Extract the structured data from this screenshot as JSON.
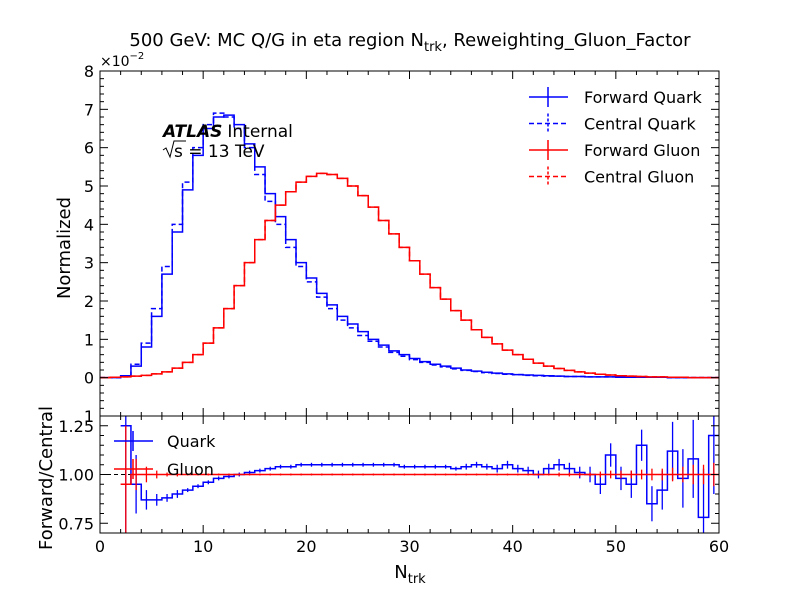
{
  "title_main": "500 GeV: MC Q/G in eta region N",
  "title_sub": "trk",
  "title_tail": ", Reweighting_Gluon_Factor",
  "atlas_label": "ATLAS",
  "atlas_internal": "Internal",
  "energy_root": "s",
  "energy_label": " = 13 TeV",
  "offset_base": "×10",
  "offset_exp": "−2",
  "chart_data": [
    {
      "type": "line",
      "ylabel": "Normalized",
      "xlim": [
        0,
        60
      ],
      "ylim": [
        -1,
        8
      ],
      "yscale_note": "values ×10^-2",
      "grid": false,
      "legend_position": "top-right",
      "x_ticks": [
        "0",
        "10",
        "20",
        "30",
        "40",
        "50",
        "60"
      ],
      "y_ticks": [
        "0",
        "1",
        "2",
        "3",
        "4",
        "5",
        "6",
        "7",
        "8"
      ],
      "bin_edges": [
        0,
        1,
        2,
        3,
        4,
        5,
        6,
        7,
        8,
        9,
        10,
        11,
        12,
        13,
        14,
        15,
        16,
        17,
        18,
        19,
        20,
        21,
        22,
        23,
        24,
        25,
        26,
        27,
        28,
        29,
        30,
        31,
        32,
        33,
        34,
        35,
        36,
        37,
        38,
        39,
        40,
        41,
        42,
        43,
        44,
        45,
        46,
        47,
        48,
        49,
        50,
        51,
        52,
        53,
        54,
        55,
        56,
        57,
        58,
        59,
        60
      ],
      "series": [
        {
          "name": "Forward Quark",
          "color": "#0000ff",
          "dash": "solid",
          "values": [
            0,
            0,
            0.05,
            0.3,
            0.8,
            1.6,
            2.7,
            3.8,
            4.9,
            5.8,
            6.5,
            6.8,
            6.85,
            6.6,
            6.1,
            5.5,
            4.8,
            4.2,
            3.6,
            3.0,
            2.6,
            2.2,
            1.9,
            1.6,
            1.4,
            1.2,
            1.0,
            0.85,
            0.7,
            0.6,
            0.5,
            0.42,
            0.35,
            0.3,
            0.25,
            0.2,
            0.17,
            0.14,
            0.12,
            0.1,
            0.08,
            0.07,
            0.06,
            0.05,
            0.04,
            0.03,
            0.03,
            0.02,
            0.02,
            0.02,
            0.01,
            0.01,
            0.01,
            0.01,
            0.01,
            0,
            0,
            0,
            0,
            0
          ]
        },
        {
          "name": "Central Quark",
          "color": "#0000ff",
          "dash": "dashed",
          "values": [
            0,
            0,
            0.05,
            0.35,
            0.9,
            1.8,
            2.9,
            4.0,
            5.1,
            6.0,
            6.6,
            6.9,
            6.8,
            6.5,
            6.0,
            5.3,
            4.6,
            4.0,
            3.4,
            2.9,
            2.5,
            2.1,
            1.8,
            1.5,
            1.3,
            1.1,
            0.95,
            0.8,
            0.66,
            0.56,
            0.47,
            0.4,
            0.33,
            0.28,
            0.23,
            0.19,
            0.16,
            0.13,
            0.11,
            0.09,
            0.08,
            0.06,
            0.05,
            0.04,
            0.04,
            0.03,
            0.03,
            0.02,
            0.02,
            0.02,
            0.01,
            0.01,
            0.01,
            0.01,
            0.01,
            0,
            0,
            0,
            0,
            0
          ]
        },
        {
          "name": "Forward Gluon",
          "color": "#ff0000",
          "dash": "solid",
          "values": [
            0,
            0.01,
            0.02,
            0.04,
            0.06,
            0.1,
            0.15,
            0.25,
            0.4,
            0.6,
            0.9,
            1.3,
            1.8,
            2.4,
            3.0,
            3.6,
            4.1,
            4.5,
            4.85,
            5.1,
            5.25,
            5.33,
            5.3,
            5.2,
            5.0,
            4.75,
            4.45,
            4.1,
            3.75,
            3.4,
            3.05,
            2.7,
            2.35,
            2.05,
            1.75,
            1.5,
            1.25,
            1.05,
            0.88,
            0.72,
            0.6,
            0.48,
            0.38,
            0.3,
            0.24,
            0.19,
            0.15,
            0.12,
            0.09,
            0.07,
            0.05,
            0.04,
            0.03,
            0.02,
            0.02,
            0.01,
            0.01,
            0,
            0,
            0
          ]
        },
        {
          "name": "Central Gluon",
          "color": "#ff0000",
          "dash": "dashed",
          "values": [
            0,
            0.01,
            0.02,
            0.04,
            0.06,
            0.1,
            0.15,
            0.25,
            0.4,
            0.6,
            0.9,
            1.3,
            1.8,
            2.4,
            3.0,
            3.6,
            4.1,
            4.5,
            4.85,
            5.1,
            5.25,
            5.33,
            5.3,
            5.2,
            5.0,
            4.75,
            4.45,
            4.1,
            3.75,
            3.4,
            3.05,
            2.7,
            2.35,
            2.05,
            1.75,
            1.5,
            1.25,
            1.05,
            0.88,
            0.72,
            0.6,
            0.48,
            0.38,
            0.3,
            0.24,
            0.19,
            0.15,
            0.12,
            0.09,
            0.07,
            0.05,
            0.04,
            0.03,
            0.02,
            0.02,
            0.01,
            0.01,
            0,
            0,
            0
          ]
        }
      ]
    },
    {
      "type": "line",
      "xlabel_main": "N",
      "xlabel_sub": "trk",
      "ylabel": "Forward/Central",
      "xlim": [
        0,
        60
      ],
      "ylim": [
        0.7,
        1.3
      ],
      "reference_line": 1.0,
      "grid": false,
      "legend_position": "top-left",
      "x_ticks": [
        "0",
        "10",
        "20",
        "30",
        "40",
        "50",
        "60"
      ],
      "y_ticks": [
        "0.75",
        "1.00",
        "1.25"
      ],
      "bin_edges": [
        2,
        3,
        4,
        5,
        6,
        7,
        8,
        9,
        10,
        11,
        12,
        13,
        14,
        15,
        16,
        17,
        18,
        19,
        20,
        21,
        22,
        23,
        24,
        25,
        26,
        27,
        28,
        29,
        30,
        31,
        32,
        33,
        34,
        35,
        36,
        37,
        38,
        39,
        40,
        41,
        42,
        43,
        44,
        45,
        46,
        47,
        48,
        49,
        50,
        51,
        52,
        53,
        54,
        55,
        56,
        57,
        58,
        59,
        60
      ],
      "series": [
        {
          "name": "Quark",
          "color": "#0000ff",
          "values": [
            1.25,
            0.95,
            0.87,
            0.87,
            0.88,
            0.9,
            0.92,
            0.94,
            0.96,
            0.98,
            0.99,
            1.0,
            1.01,
            1.02,
            1.03,
            1.04,
            1.04,
            1.05,
            1.05,
            1.05,
            1.05,
            1.05,
            1.05,
            1.05,
            1.05,
            1.05,
            1.05,
            1.04,
            1.04,
            1.04,
            1.04,
            1.04,
            1.03,
            1.04,
            1.05,
            1.04,
            1.03,
            1.05,
            1.03,
            1.02,
            1.0,
            1.03,
            1.05,
            1.03,
            1.01,
            1.0,
            0.95,
            1.1,
            0.98,
            0.95,
            1.15,
            0.85,
            0.92,
            1.12,
            0.98,
            1.08,
            0.78,
            1.2
          ],
          "errors": [
            0.6,
            0.15,
            0.05,
            0.03,
            0.02,
            0.02,
            0.01,
            0.01,
            0.01,
            0.01,
            0.01,
            0.01,
            0.01,
            0.01,
            0.01,
            0.01,
            0.01,
            0.01,
            0.01,
            0.01,
            0.01,
            0.01,
            0.01,
            0.01,
            0.01,
            0.01,
            0.01,
            0.01,
            0.01,
            0.01,
            0.01,
            0.01,
            0.01,
            0.015,
            0.015,
            0.015,
            0.02,
            0.02,
            0.02,
            0.02,
            0.02,
            0.025,
            0.03,
            0.03,
            0.03,
            0.04,
            0.05,
            0.06,
            0.06,
            0.07,
            0.08,
            0.09,
            0.1,
            0.15,
            0.15,
            0.2,
            0.25,
            0.3
          ]
        },
        {
          "name": "Gluon",
          "color": "#ff0000",
          "values": [
            0.95,
            1.0,
            1.0,
            1.0,
            1.0,
            1.0,
            1.0,
            1.0,
            1.0,
            1.0,
            1.0,
            1.0,
            1.0,
            1.0,
            1.0,
            1.0,
            1.0,
            1.0,
            1.0,
            1.0,
            1.0,
            1.0,
            1.0,
            1.0,
            1.0,
            1.0,
            1.0,
            1.0,
            1.0,
            1.0,
            1.0,
            1.0,
            1.0,
            1.0,
            1.0,
            1.0,
            1.0,
            1.0,
            1.0,
            1.0,
            1.0,
            1.0,
            1.0,
            1.0,
            1.0,
            1.0,
            1.0,
            1.0,
            1.0,
            1.0,
            1.0,
            1.0,
            1.0,
            1.0,
            1.0,
            1.0,
            1.0,
            1.0
          ],
          "errors": [
            0.3,
            0.08,
            0.04,
            0.02,
            0.01,
            0.01,
            0.005,
            0.005,
            0.005,
            0.005,
            0.005,
            0.005,
            0.005,
            0.005,
            0.005,
            0.005,
            0.005,
            0.005,
            0.005,
            0.005,
            0.005,
            0.005,
            0.005,
            0.005,
            0.005,
            0.005,
            0.005,
            0.005,
            0.005,
            0.005,
            0.005,
            0.005,
            0.005,
            0.005,
            0.005,
            0.005,
            0.005,
            0.005,
            0.005,
            0.005,
            0.005,
            0.005,
            0.01,
            0.01,
            0.01,
            0.01,
            0.015,
            0.02,
            0.02,
            0.02,
            0.025,
            0.03,
            0.03,
            0.035,
            0.04,
            0.05,
            0.05,
            0.06
          ]
        }
      ]
    }
  ]
}
